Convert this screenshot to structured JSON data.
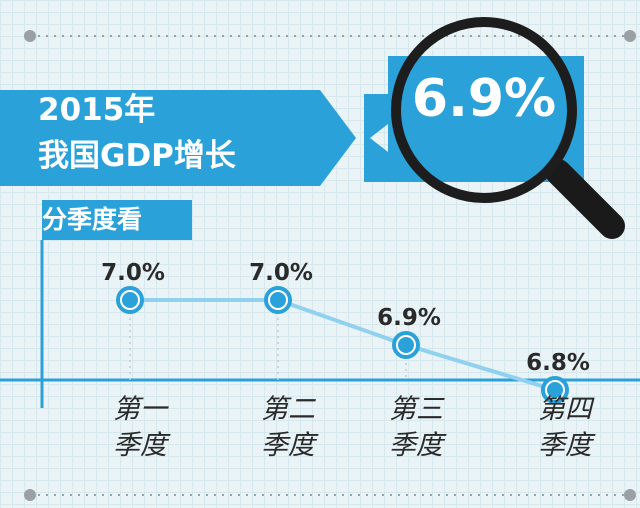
{
  "title_line1": "2015年",
  "title_line2": "我国GDP增长",
  "highlight_value": "6.9%",
  "subtitle": "分季度看",
  "colors": {
    "accent": "#2aa1d8",
    "line": "#8fd1ef",
    "point": "#2aa1d8",
    "background": "#eaf3f6"
  },
  "chart_data": {
    "type": "line",
    "categories": [
      "第一\n季度",
      "第二\n季度",
      "第三\n季度",
      "第四\n季度"
    ],
    "values": [
      7.0,
      7.0,
      6.9,
      6.8
    ],
    "data_labels": [
      "7.0%",
      "7.0%",
      "6.9%",
      "6.8%"
    ],
    "title": "2015年我国GDP增长",
    "subtitle": "分季度看",
    "xlabel": "",
    "ylabel": "",
    "ylim": [
      6.5,
      7.2
    ],
    "grid": true,
    "legend": "none"
  }
}
